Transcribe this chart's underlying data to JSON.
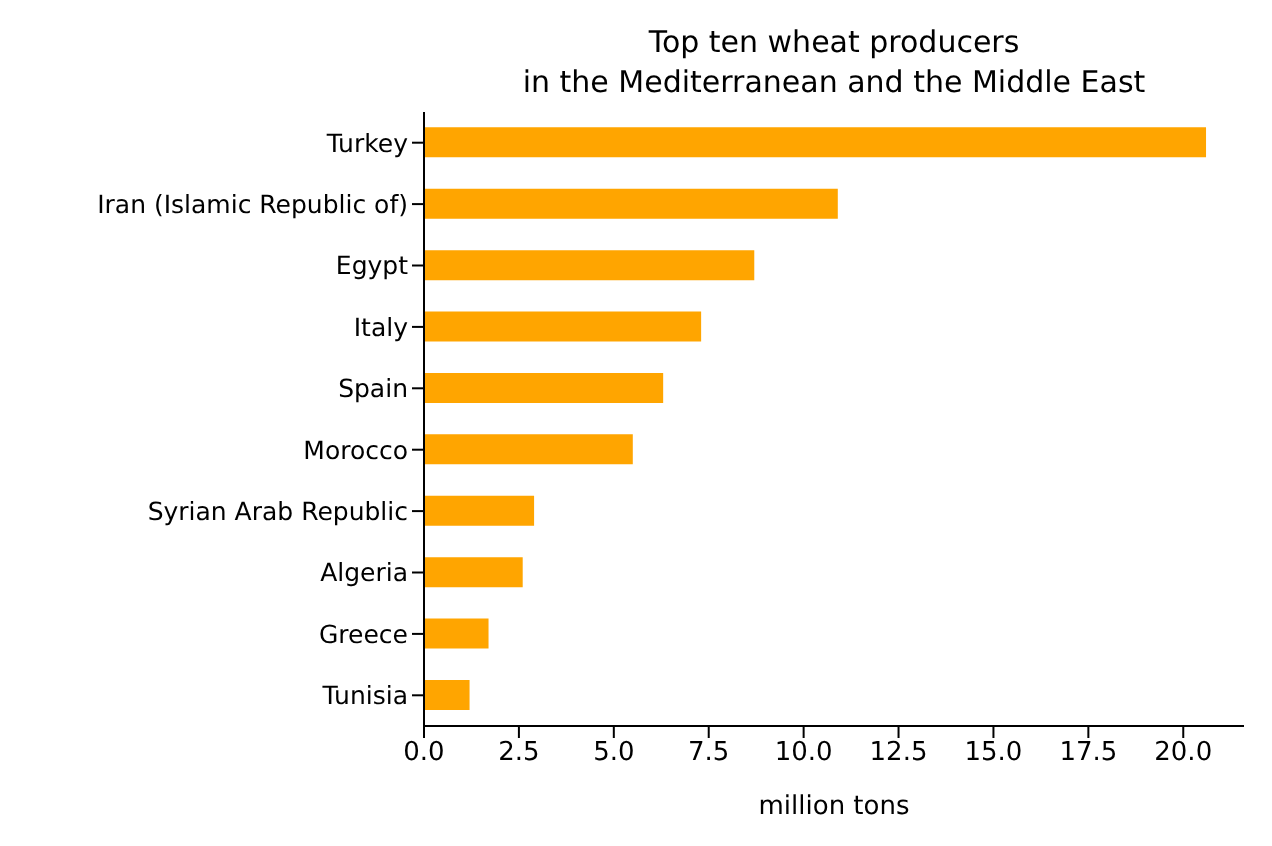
{
  "chart_data": {
    "type": "bar",
    "orientation": "horizontal",
    "title": "Top ten wheat producers\nin the Mediterranean and the Middle East",
    "xlabel": "million tons",
    "categories": [
      "Turkey",
      "Iran (Islamic Republic of)",
      "Egypt",
      "Italy",
      "Spain",
      "Morocco",
      "Syrian Arab Republic",
      "Algeria",
      "Greece",
      "Tunisia"
    ],
    "values": [
      20.6,
      10.9,
      8.7,
      7.3,
      6.3,
      5.5,
      2.9,
      2.6,
      1.7,
      1.2
    ],
    "color": "#ffa500",
    "xlim": [
      0,
      21.6
    ],
    "xticks": [
      {
        "value": 0,
        "label": "0.0"
      },
      {
        "value": 2.5,
        "label": "2.5"
      },
      {
        "value": 5,
        "label": "5.0"
      },
      {
        "value": 7.5,
        "label": "7.5"
      },
      {
        "value": 10,
        "label": "10.0"
      },
      {
        "value": 12.5,
        "label": "12.5"
      },
      {
        "value": 15,
        "label": "15.0"
      },
      {
        "value": 17.5,
        "label": "17.5"
      },
      {
        "value": 20,
        "label": "20.0"
      }
    ],
    "grid": false
  }
}
